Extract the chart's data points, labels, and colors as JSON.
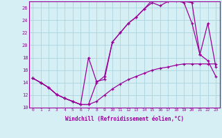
{
  "xlabel": "Windchill (Refroidissement éolien,°C)",
  "ylabel": "",
  "background_color": "#d6eff5",
  "grid_color": "#aad4dc",
  "line_color": "#990099",
  "xlim": [
    -0.5,
    23.5
  ],
  "ylim": [
    10,
    27
  ],
  "yticks": [
    10,
    12,
    14,
    16,
    18,
    20,
    22,
    24,
    26
  ],
  "xticks": [
    0,
    1,
    2,
    3,
    4,
    5,
    6,
    7,
    8,
    9,
    10,
    11,
    12,
    13,
    14,
    15,
    16,
    17,
    18,
    19,
    20,
    21,
    22,
    23
  ],
  "line1_x": [
    0,
    1,
    2,
    3,
    4,
    5,
    6,
    7,
    8,
    9,
    10,
    11,
    12,
    13,
    14,
    15,
    16,
    17,
    18,
    19,
    20,
    21,
    22,
    23
  ],
  "line1_y": [
    14.7,
    14.0,
    13.2,
    12.1,
    11.5,
    11.0,
    10.5,
    10.5,
    14.0,
    15.0,
    20.5,
    22.0,
    23.5,
    24.5,
    25.8,
    27.2,
    27.2,
    27.3,
    27.2,
    27.0,
    26.8,
    18.5,
    23.5,
    16.5
  ],
  "line2_x": [
    0,
    1,
    2,
    3,
    4,
    5,
    6,
    7,
    8,
    9,
    10,
    11,
    12,
    13,
    14,
    15,
    16,
    17,
    18,
    19,
    20,
    21,
    22,
    23
  ],
  "line2_y": [
    14.7,
    14.0,
    13.2,
    12.1,
    11.5,
    11.0,
    10.5,
    18.0,
    14.2,
    14.5,
    20.5,
    22.0,
    23.5,
    24.5,
    25.8,
    26.8,
    26.3,
    27.0,
    27.1,
    26.8,
    23.5,
    18.5,
    17.5,
    15.0
  ],
  "line3_x": [
    0,
    1,
    2,
    3,
    4,
    5,
    6,
    7,
    8,
    9,
    10,
    11,
    12,
    13,
    14,
    15,
    16,
    17,
    18,
    19,
    20,
    21,
    22,
    23
  ],
  "line3_y": [
    14.7,
    14.0,
    13.2,
    12.1,
    11.5,
    11.0,
    10.5,
    10.5,
    11.0,
    12.0,
    13.0,
    13.8,
    14.5,
    15.0,
    15.5,
    16.0,
    16.3,
    16.5,
    16.8,
    17.0,
    17.0,
    17.0,
    17.0,
    17.0
  ]
}
